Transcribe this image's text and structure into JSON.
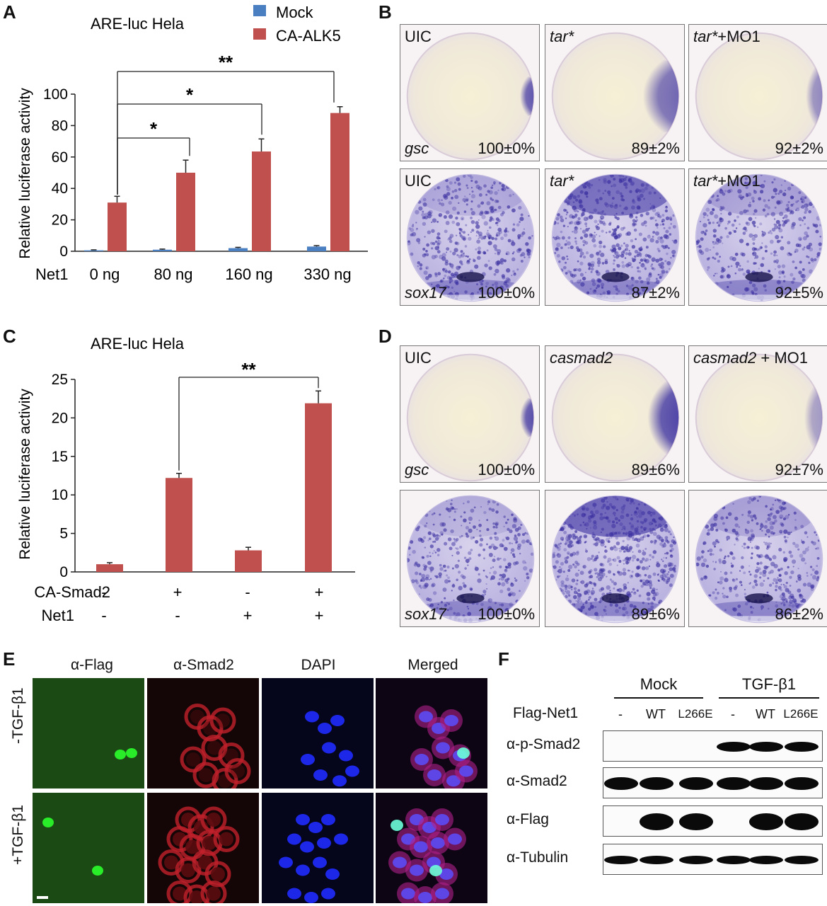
{
  "panels": {
    "A": "A",
    "B": "B",
    "C": "C",
    "D": "D",
    "E": "E",
    "F": "F"
  },
  "colors": {
    "mock": "#4a7fc1",
    "ca": "#c0504d",
    "stain": "#3a2fa0"
  },
  "chart_data": [
    {
      "type": "bar",
      "title": "ARE-luc   Hela",
      "ylabel": "Relative luciferase activity",
      "ylim": [
        0,
        100
      ],
      "yticks": [
        0,
        20,
        40,
        60,
        80,
        100
      ],
      "row_label": "Net1",
      "categories": [
        "0 ng",
        "80 ng",
        "160 ng",
        "330 ng"
      ],
      "series": [
        {
          "name": "Mock",
          "values": [
            0.6,
            1.0,
            2.0,
            3.0
          ],
          "errors": [
            0.3,
            0.4,
            0.5,
            0.6
          ]
        },
        {
          "name": "CA-ALK5",
          "values": [
            31,
            50,
            63.5,
            88
          ],
          "errors": [
            4,
            8,
            8,
            4
          ]
        }
      ],
      "legend": "top-right",
      "significance": [
        {
          "from": 0,
          "to": 1,
          "label": "*",
          "level": 1
        },
        {
          "from": 0,
          "to": 2,
          "label": "*",
          "level": 2
        },
        {
          "from": 0,
          "to": 3,
          "label": "**",
          "level": 3
        }
      ]
    },
    {
      "type": "bar",
      "title": "ARE-luc   Hela",
      "ylabel": "Relative luciferase activity",
      "ylim": [
        0,
        25
      ],
      "yticks": [
        0,
        5,
        10,
        15,
        20,
        25
      ],
      "rows": [
        {
          "label": "CA-Smad2",
          "values": [
            "-",
            "+",
            "-",
            "+"
          ]
        },
        {
          "label": "Net1",
          "values": [
            "-",
            "-",
            "+",
            "+"
          ]
        }
      ],
      "series": [
        {
          "values": [
            1.0,
            12.2,
            2.8,
            21.9
          ],
          "errors": [
            0.2,
            0.6,
            0.4,
            1.6
          ]
        }
      ],
      "significance": [
        {
          "from": 1,
          "to": 3,
          "label": "**"
        }
      ]
    }
  ],
  "panelB": {
    "top": [
      {
        "label": "UIC",
        "label_it": "",
        "gene": "gsc",
        "pct": "100±0%"
      },
      {
        "label": "",
        "label_it": "tar*",
        "gene": "",
        "pct": "89±2%"
      },
      {
        "label": "+MO1",
        "label_it": "tar*",
        "gene": "",
        "pct": "92±2%"
      }
    ],
    "bottom": [
      {
        "label": "UIC",
        "label_it": "",
        "gene": "sox17",
        "pct": "100±0%"
      },
      {
        "label": "",
        "label_it": "tar*",
        "gene": "",
        "pct": "87±2%"
      },
      {
        "label": "+MO1",
        "label_it": "tar*",
        "gene": "",
        "pct": "92±5%"
      }
    ]
  },
  "panelD": {
    "top": [
      {
        "label": "UIC",
        "label_it": "",
        "gene": "gsc",
        "pct": "100±0%"
      },
      {
        "label": "",
        "label_it": "casmad2",
        "gene": "",
        "pct": "89±6%"
      },
      {
        "label": " + MO1",
        "label_it": "casmad2",
        "gene": "",
        "pct": "92±7%"
      }
    ],
    "bottom": [
      {
        "label": "",
        "label_it": "",
        "gene": "sox17",
        "pct": "100±0%"
      },
      {
        "label": "",
        "label_it": "",
        "gene": "",
        "pct": "89±6%"
      },
      {
        "label": "",
        "label_it": "",
        "gene": "",
        "pct": "86±2%"
      }
    ]
  },
  "panelE": {
    "columns": [
      "α-Flag",
      "α-Smad2",
      "DAPI",
      "Merged"
    ],
    "rows": [
      "-TGF-β1",
      "+TGF-β1"
    ]
  },
  "panelF": {
    "groups": [
      "Mock",
      "TGF-β1"
    ],
    "lane_header_label": "Flag-Net1",
    "lanes": [
      "-",
      "WT",
      "L266E",
      "-",
      "WT",
      "L266E"
    ],
    "blots": [
      "α-p-Smad2",
      "α-Smad2",
      "α-Flag",
      "α-Tubulin"
    ]
  }
}
